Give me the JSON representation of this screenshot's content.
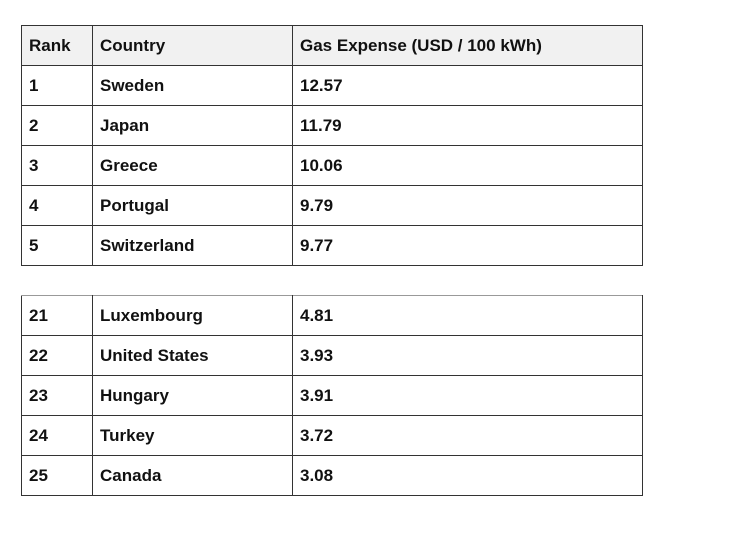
{
  "table": {
    "columns": [
      "Rank",
      "Country",
      "Gas Expense (USD / 100 kWh)"
    ],
    "rows": [
      [
        1,
        "Sweden",
        12.57
      ],
      [
        2,
        "Japan",
        11.79
      ],
      [
        3,
        "Greece",
        10.06
      ],
      [
        4,
        "Portugal",
        9.79
      ],
      [
        5,
        "Switzerland",
        9.77
      ]
    ]
  },
  "table_2": {
    "rows": [
      [
        21,
        "Luxembourg",
        4.81
      ],
      [
        22,
        "United States",
        3.93
      ],
      [
        23,
        "Hungary",
        3.91
      ],
      [
        24,
        "Turkey",
        3.72
      ],
      [
        25,
        "Canada",
        3.08
      ]
    ]
  }
}
